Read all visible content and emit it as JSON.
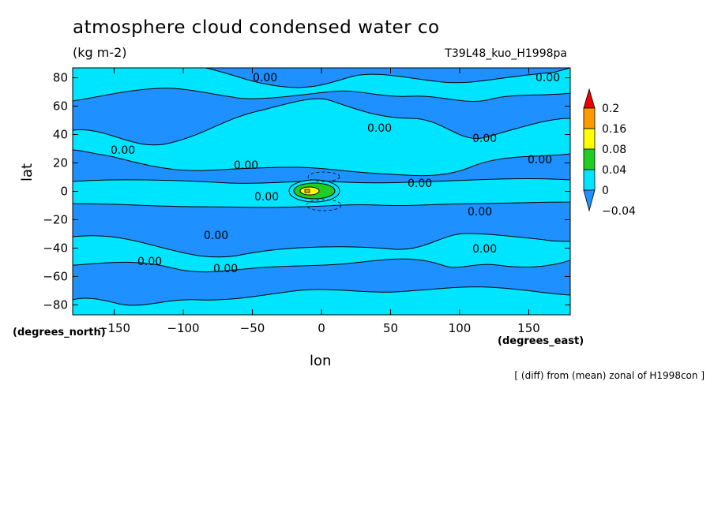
{
  "chart_data": {
    "type": "heatmap",
    "title": "atmosphere cloud condensed water co",
    "units": "(kg m-2)",
    "run_label": "T39L48_kuo_H1998pa",
    "xlabel": "lon",
    "ylabel": "lat",
    "x_unit_note": "(degrees_east)",
    "y_unit_note": "(degrees_north)",
    "xlim": [
      -180,
      180
    ],
    "ylim": [
      -87,
      87
    ],
    "x_ticks": [
      -150,
      -100,
      -50,
      0,
      50,
      100,
      150
    ],
    "x_tick_labels": [
      "-150",
      "-100",
      "-50",
      "0",
      "50",
      "100",
      "150"
    ],
    "y_ticks": [
      -80,
      -60,
      -40,
      -20,
      0,
      20,
      40,
      60,
      80
    ],
    "y_tick_labels": [
      "-80",
      "-60",
      "-40",
      "-20",
      "0",
      "20",
      "40",
      "60",
      "80"
    ],
    "colorbar": {
      "levels": [
        "-0.04",
        "0",
        "0.04",
        "0.08",
        "0.16",
        "0.2"
      ],
      "colors": [
        "#1e90ff",
        "#00e5ff",
        "#22cc22",
        "#ffff00",
        "#ff9900",
        "#ee0000"
      ],
      "extend": "both"
    },
    "contour_labels": [
      "0.00",
      "0.00",
      "0.00",
      "0.00",
      "0.00",
      "0.00",
      "0.00",
      "0.00",
      "0.00",
      "0.00",
      "0.00",
      "0.00",
      "0.00",
      "0.00"
    ],
    "footnote": "[ (diff) from (mean) zonal of H1998con ]",
    "grid": false,
    "legend": "right"
  }
}
